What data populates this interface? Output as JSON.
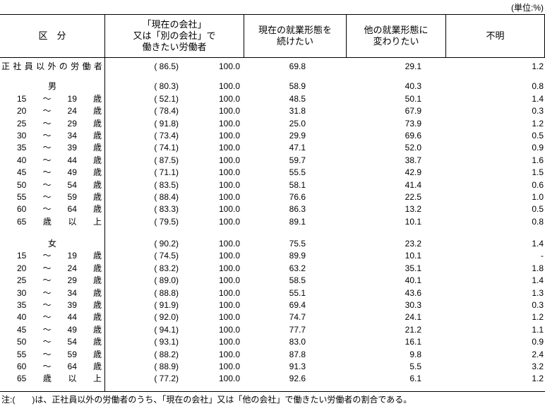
{
  "unit_label": "(単位:%)",
  "footnote": "注:(　　)は、正社員以外の労働者のうち、「現在の会社」又は「他の会社」で働きたい労働者の割合である。",
  "table": {
    "columns": [
      {
        "id": "kubun",
        "lines": [
          "区　分"
        ]
      },
      {
        "id": "want-work",
        "lines": [
          "「現在の会社」",
          "又は「別の会社」で",
          "働きたい労働者"
        ]
      },
      {
        "id": "continue",
        "lines": [
          "現在の就業形態を",
          "続けたい"
        ]
      },
      {
        "id": "change",
        "lines": [
          "他の就業形態に",
          "変わりたい"
        ]
      },
      {
        "id": "unknown",
        "lines": [
          "不明"
        ]
      }
    ],
    "rows": [
      {
        "type": "data",
        "label_parts": [
          "正",
          "社",
          "員",
          "以",
          "外",
          "の",
          "労",
          "働",
          "者"
        ],
        "label_layout": "full",
        "values": [
          "( 86.5)",
          "100.0",
          "69.8",
          "29.1",
          "1.2"
        ]
      },
      {
        "type": "spacer",
        "size": "small"
      },
      {
        "type": "data",
        "label_parts": [
          "男"
        ],
        "label_layout": "center",
        "values": [
          "( 80.3)",
          "100.0",
          "58.9",
          "40.3",
          "0.8"
        ]
      },
      {
        "type": "data",
        "label_parts": [
          "15",
          "～",
          "19",
          "歳"
        ],
        "label_layout": "spread",
        "values": [
          "( 52.1)",
          "100.0",
          "48.5",
          "50.1",
          "1.4"
        ]
      },
      {
        "type": "data",
        "label_parts": [
          "20",
          "～",
          "24",
          "歳"
        ],
        "label_layout": "spread",
        "values": [
          "( 78.4)",
          "100.0",
          "31.8",
          "67.9",
          "0.3"
        ]
      },
      {
        "type": "data",
        "label_parts": [
          "25",
          "～",
          "29",
          "歳"
        ],
        "label_layout": "spread",
        "values": [
          "( 91.8)",
          "100.0",
          "25.0",
          "73.9",
          "1.2"
        ]
      },
      {
        "type": "data",
        "label_parts": [
          "30",
          "～",
          "34",
          "歳"
        ],
        "label_layout": "spread",
        "values": [
          "( 73.4)",
          "100.0",
          "29.9",
          "69.6",
          "0.5"
        ]
      },
      {
        "type": "data",
        "label_parts": [
          "35",
          "～",
          "39",
          "歳"
        ],
        "label_layout": "spread",
        "values": [
          "( 74.1)",
          "100.0",
          "47.1",
          "52.0",
          "0.9"
        ]
      },
      {
        "type": "data",
        "label_parts": [
          "40",
          "～",
          "44",
          "歳"
        ],
        "label_layout": "spread",
        "values": [
          "( 87.5)",
          "100.0",
          "59.7",
          "38.7",
          "1.6"
        ]
      },
      {
        "type": "data",
        "label_parts": [
          "45",
          "～",
          "49",
          "歳"
        ],
        "label_layout": "spread",
        "values": [
          "( 71.1)",
          "100.0",
          "55.5",
          "42.9",
          "1.5"
        ]
      },
      {
        "type": "data",
        "label_parts": [
          "50",
          "～",
          "54",
          "歳"
        ],
        "label_layout": "spread",
        "values": [
          "( 83.5)",
          "100.0",
          "58.1",
          "41.4",
          "0.6"
        ]
      },
      {
        "type": "data",
        "label_parts": [
          "55",
          "～",
          "59",
          "歳"
        ],
        "label_layout": "spread",
        "values": [
          "( 88.4)",
          "100.0",
          "76.6",
          "22.5",
          "1.0"
        ]
      },
      {
        "type": "data",
        "label_parts": [
          "60",
          "～",
          "64",
          "歳"
        ],
        "label_layout": "spread",
        "values": [
          "( 83.3)",
          "100.0",
          "86.3",
          "13.2",
          "0.5"
        ]
      },
      {
        "type": "data",
        "label_parts": [
          "65",
          "歳",
          "以",
          "上"
        ],
        "label_layout": "spread",
        "values": [
          "( 79.5)",
          "100.0",
          "89.1",
          "10.1",
          "0.8"
        ]
      },
      {
        "type": "spacer",
        "size": "large"
      },
      {
        "type": "data",
        "label_parts": [
          "女"
        ],
        "label_layout": "center",
        "values": [
          "( 90.2)",
          "100.0",
          "75.5",
          "23.2",
          "1.4"
        ]
      },
      {
        "type": "data",
        "label_parts": [
          "15",
          "～",
          "19",
          "歳"
        ],
        "label_layout": "spread",
        "values": [
          "( 74.5)",
          "100.0",
          "89.9",
          "10.1",
          "-"
        ]
      },
      {
        "type": "data",
        "label_parts": [
          "20",
          "～",
          "24",
          "歳"
        ],
        "label_layout": "spread",
        "values": [
          "( 83.2)",
          "100.0",
          "63.2",
          "35.1",
          "1.8"
        ]
      },
      {
        "type": "data",
        "label_parts": [
          "25",
          "～",
          "29",
          "歳"
        ],
        "label_layout": "spread",
        "values": [
          "( 89.0)",
          "100.0",
          "58.5",
          "40.1",
          "1.4"
        ]
      },
      {
        "type": "data",
        "label_parts": [
          "30",
          "～",
          "34",
          "歳"
        ],
        "label_layout": "spread",
        "values": [
          "( 88.8)",
          "100.0",
          "55.1",
          "43.6",
          "1.3"
        ]
      },
      {
        "type": "data",
        "label_parts": [
          "35",
          "～",
          "39",
          "歳"
        ],
        "label_layout": "spread",
        "values": [
          "( 91.9)",
          "100.0",
          "69.4",
          "30.3",
          "0.3"
        ]
      },
      {
        "type": "data",
        "label_parts": [
          "40",
          "～",
          "44",
          "歳"
        ],
        "label_layout": "spread",
        "values": [
          "( 92.0)",
          "100.0",
          "74.7",
          "24.1",
          "1.2"
        ]
      },
      {
        "type": "data",
        "label_parts": [
          "45",
          "～",
          "49",
          "歳"
        ],
        "label_layout": "spread",
        "values": [
          "( 94.1)",
          "100.0",
          "77.7",
          "21.2",
          "1.1"
        ]
      },
      {
        "type": "data",
        "label_parts": [
          "50",
          "～",
          "54",
          "歳"
        ],
        "label_layout": "spread",
        "values": [
          "( 93.1)",
          "100.0",
          "83.0",
          "16.1",
          "0.9"
        ]
      },
      {
        "type": "data",
        "label_parts": [
          "55",
          "～",
          "59",
          "歳"
        ],
        "label_layout": "spread",
        "values": [
          "( 88.2)",
          "100.0",
          "87.8",
          "9.8",
          "2.4"
        ]
      },
      {
        "type": "data",
        "label_parts": [
          "60",
          "～",
          "64",
          "歳"
        ],
        "label_layout": "spread",
        "values": [
          "( 88.9)",
          "100.0",
          "91.3",
          "5.5",
          "3.2"
        ]
      },
      {
        "type": "data",
        "label_parts": [
          "65",
          "歳",
          "以",
          "上"
        ],
        "label_layout": "spread",
        "values": [
          "( 77.2)",
          "100.0",
          "92.6",
          "6.1",
          "1.2"
        ]
      }
    ],
    "value_column_names": [
      "value-nonregular-share",
      "value-total",
      "value-continue",
      "value-change",
      "value-unknown"
    ]
  }
}
